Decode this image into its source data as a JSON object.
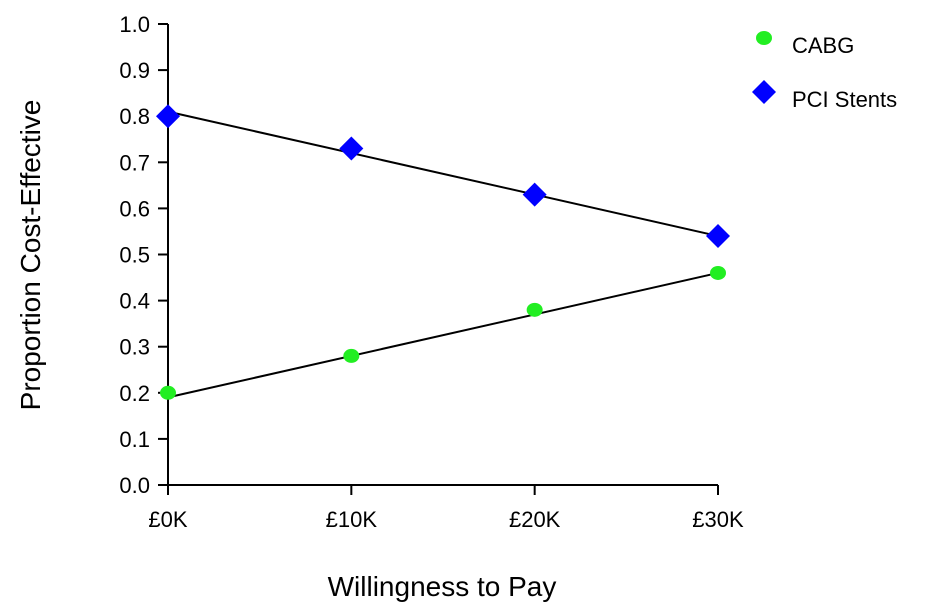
{
  "chart_data": {
    "type": "line",
    "title": "",
    "xlabel": "Willingness to Pay",
    "ylabel": "Proportion Cost-Effective",
    "categories": [
      "£0K",
      "£10K",
      "£20K",
      "£30K"
    ],
    "x": [
      0,
      10,
      20,
      30
    ],
    "xlim": [
      0,
      30
    ],
    "ylim": [
      0.0,
      1.0
    ],
    "yticks": [
      "0.0",
      "0.1",
      "0.2",
      "0.3",
      "0.4",
      "0.5",
      "0.6",
      "0.7",
      "0.8",
      "0.9",
      "1.0"
    ],
    "grid": false,
    "legend_position": "top-right",
    "series": [
      {
        "name": "CABG",
        "values": [
          0.2,
          0.28,
          0.38,
          0.46
        ],
        "marker": "circle",
        "color": "#22ee22",
        "fit_line": [
          0.19,
          0.46
        ]
      },
      {
        "name": "PCI Stents",
        "values": [
          0.8,
          0.73,
          0.63,
          0.54
        ],
        "marker": "diamond",
        "color": "#0000ff",
        "fit_line": [
          0.81,
          0.54
        ]
      }
    ]
  }
}
